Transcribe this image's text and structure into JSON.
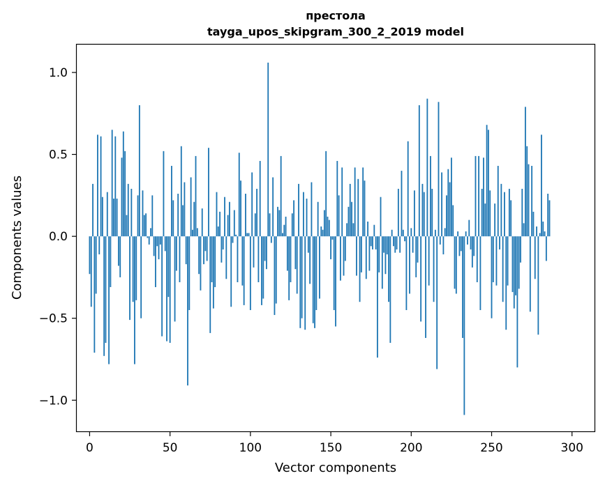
{
  "chart_data": {
    "type": "bar",
    "title_lines": [
      "престола",
      "tayga_upos_skipgram_300_2_2019 model"
    ],
    "xlabel": "Vector components",
    "ylabel": "Components values",
    "xlim": [
      -8,
      314
    ],
    "ylim": [
      -1.19,
      1.17
    ],
    "x_ticks": [
      0,
      50,
      100,
      150,
      200,
      250,
      300
    ],
    "x_tick_labels": [
      "0",
      "50",
      "100",
      "150",
      "200",
      "250",
      "300"
    ],
    "y_ticks": [
      -1.0,
      -0.5,
      0.0,
      0.5,
      1.0
    ],
    "y_tick_labels": [
      "−1.0",
      "−0.5",
      "0.0",
      "0.5",
      "1.0"
    ],
    "bar_color": "#1f77b4",
    "grid": false,
    "series": [
      {
        "values": [
          -0.23,
          -0.43,
          0.32,
          -0.71,
          -0.35,
          0.62,
          -0.11,
          0.61,
          0.24,
          -0.73,
          -0.65,
          0.27,
          -0.78,
          -0.31,
          0.65,
          0.23,
          0.61,
          0.23,
          -0.18,
          -0.25,
          0.48,
          0.64,
          0.52,
          0.13,
          0.32,
          -0.51,
          0.29,
          -0.4,
          -0.78,
          -0.39,
          0.25,
          0.8,
          -0.5,
          0.28,
          0.13,
          0.14,
          -0.01,
          -0.05,
          0.05,
          0.25,
          -0.12,
          -0.31,
          -0.06,
          -0.14,
          -0.05,
          -0.61,
          0.52,
          -0.09,
          -0.64,
          -0.37,
          -0.65,
          0.43,
          0.22,
          -0.52,
          -0.21,
          0.26,
          -0.28,
          0.55,
          0.19,
          0.33,
          -0.17,
          -0.91,
          -0.45,
          0.36,
          0.04,
          0.21,
          0.49,
          0.05,
          -0.23,
          -0.33,
          0.17,
          -0.17,
          -0.09,
          -0.15,
          0.54,
          -0.59,
          -0.28,
          -0.44,
          -0.31,
          0.27,
          0.06,
          0.15,
          -0.16,
          -0.08,
          0.24,
          -0.26,
          0.13,
          0.21,
          -0.43,
          -0.04,
          0.16,
          0.01,
          -0.28,
          0.51,
          0.34,
          -0.3,
          -0.42,
          0.26,
          0.02,
          0.02,
          -0.45,
          0.39,
          -0.19,
          0.14,
          0.29,
          -0.28,
          0.46,
          -0.42,
          -0.38,
          -0.15,
          -0.2,
          1.06,
          0.14,
          -0.04,
          0.36,
          -0.48,
          -0.41,
          0.18,
          0.16,
          0.49,
          0.02,
          0.07,
          0.12,
          -0.21,
          -0.39,
          -0.28,
          0.14,
          0.22,
          -0.2,
          -0.35,
          0.32,
          -0.56,
          -0.5,
          0.27,
          -0.57,
          0.23,
          -0.1,
          -0.29,
          0.33,
          -0.53,
          -0.56,
          -0.45,
          0.21,
          -0.38,
          0.06,
          0.04,
          0.16,
          0.52,
          0.12,
          0.1,
          -0.14,
          -0.02,
          -0.45,
          -0.55,
          0.46,
          0.25,
          -0.27,
          0.42,
          -0.24,
          -0.15,
          0.08,
          0.18,
          0.32,
          0.21,
          0.08,
          0.42,
          -0.24,
          0.35,
          -0.4,
          -0.22,
          0.42,
          0.34,
          -0.26,
          0.09,
          -0.21,
          -0.06,
          -0.08,
          0.07,
          -0.08,
          -0.74,
          -0.22,
          0.24,
          -0.32,
          -0.1,
          -0.23,
          -0.11,
          -0.4,
          -0.65,
          0.04,
          -0.06,
          -0.1,
          -0.08,
          0.29,
          -0.1,
          0.4,
          0.04,
          -0.03,
          -0.45,
          0.58,
          -0.35,
          0.05,
          -0.1,
          0.28,
          -0.25,
          -0.16,
          0.8,
          -0.52,
          0.32,
          0.27,
          -0.62,
          0.84,
          -0.3,
          0.49,
          0.29,
          -0.4,
          0.04,
          -0.81,
          0.82,
          -0.05,
          0.39,
          -0.11,
          0.05,
          0.25,
          0.41,
          0.33,
          0.48,
          0.19,
          -0.32,
          -0.35,
          0.03,
          -0.12,
          -0.09,
          -0.62,
          -1.09,
          0.03,
          -0.05,
          0.1,
          -0.08,
          -0.19,
          -0.12,
          0.49,
          -0.28,
          0.49,
          -0.45,
          0.29,
          0.48,
          0.2,
          0.68,
          0.65,
          0.28,
          -0.5,
          -0.28,
          0.2,
          -0.3,
          0.43,
          -0.08,
          0.32,
          -0.4,
          0.27,
          -0.57,
          -0.3,
          0.29,
          0.22,
          -0.34,
          -0.44,
          -0.36,
          -0.8,
          -0.32,
          -0.16,
          0.29,
          0.08,
          0.79,
          0.55,
          0.44,
          -0.46,
          0.43,
          0.15,
          -0.26,
          0.06,
          -0.6,
          0.02,
          0.62,
          0.09,
          0.03,
          -0.15,
          0.26,
          0.22
        ]
      }
    ]
  }
}
